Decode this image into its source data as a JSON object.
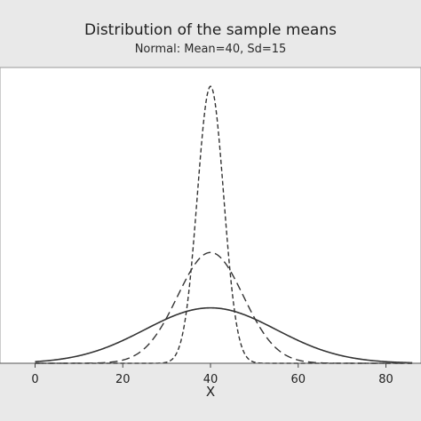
{
  "chart_data": {
    "type": "line",
    "title": "Distribution of the sample means",
    "subtitle": "Normal: Mean=40, Sd=15",
    "xlabel": "X",
    "ylabel": "",
    "xlim": [
      -8,
      88
    ],
    "xticks": [
      0,
      20,
      40,
      60,
      80
    ],
    "series": [
      {
        "style": "solid",
        "mean": 40,
        "sd": 15,
        "peak_height": 0.0266
      },
      {
        "style": "long-dash",
        "mean": 40,
        "sd": 7.5,
        "peak_height": 0.0532
      },
      {
        "style": "short-dash",
        "mean": 40,
        "sd": 3,
        "peak_height": 0.133
      }
    ],
    "ylim": [
      0,
      0.142
    ],
    "grid": false,
    "colors": {
      "line": "#333333",
      "frame": "#999999",
      "plot_bg": "#ffffff",
      "page_bg": "#e9e9e9"
    }
  }
}
